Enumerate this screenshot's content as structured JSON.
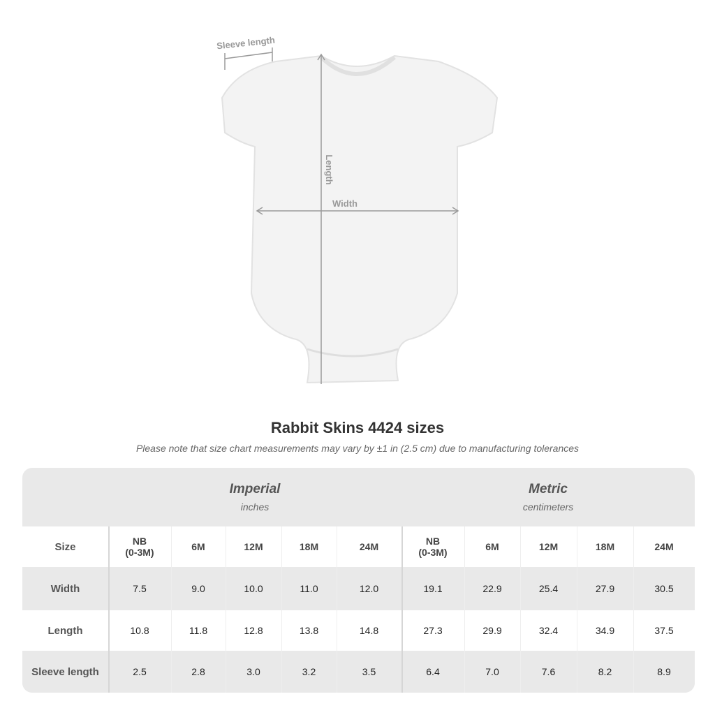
{
  "diagram": {
    "labels": {
      "sleeve": "Sleeve length",
      "length": "Length",
      "width": "Width"
    },
    "garment_color": "#f2f2f2",
    "line_color": "#9a9a9a"
  },
  "title": "Rabbit Skins 4424 sizes",
  "note": "Please note that size chart measurements may vary by ±1 in (2.5 cm) due to manufacturing tolerances",
  "table": {
    "groups": [
      {
        "name": "Imperial",
        "unit": "inches"
      },
      {
        "name": "Metric",
        "unit": "centimeters"
      }
    ],
    "size_label": "Size",
    "sizes": [
      "NB\n(0-3M)",
      "6M",
      "12M",
      "18M",
      "24M",
      "NB\n(0-3M)",
      "6M",
      "12M",
      "18M",
      "24M"
    ],
    "rows": [
      {
        "label": "Width",
        "values": [
          "7.5",
          "9.0",
          "10.0",
          "11.0",
          "12.0",
          "19.1",
          "22.9",
          "25.4",
          "27.9",
          "30.5"
        ]
      },
      {
        "label": "Length",
        "values": [
          "10.8",
          "11.8",
          "12.8",
          "13.8",
          "14.8",
          "27.3",
          "29.9",
          "32.4",
          "34.9",
          "37.5"
        ]
      },
      {
        "label": "Sleeve length",
        "values": [
          "2.5",
          "2.8",
          "3.0",
          "3.2",
          "3.5",
          "6.4",
          "7.0",
          "7.6",
          "8.2",
          "8.9"
        ]
      }
    ]
  }
}
